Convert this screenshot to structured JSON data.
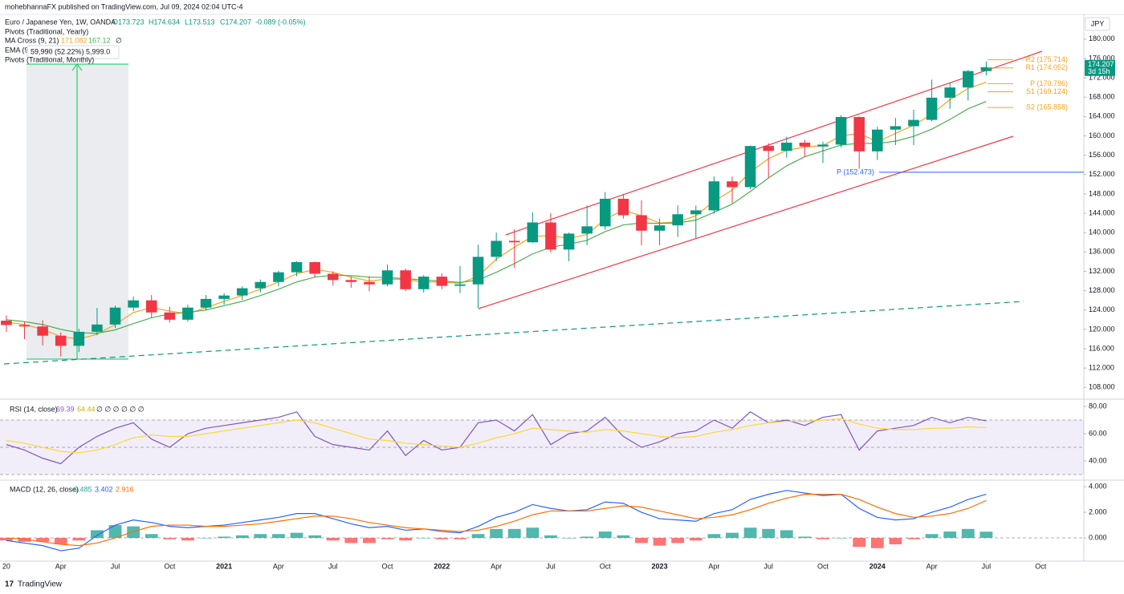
{
  "header": {
    "publisher": "mohebhannaFX published on TradingView.com, Jul 09, 2024 02:04 UTC-4"
  },
  "legend": {
    "symbol": "Euro / Japanese Yen, 1W, OANDA",
    "open": "O173.723",
    "high": "H174.634",
    "low": "L173.513",
    "close": "C174.207",
    "change": "-0.089 (-0.05%)",
    "pivots_yearly": "Pivots (Traditional, Yearly)",
    "ma_cross": "MA Cross (9, 21)",
    "ma_extra": "∅",
    "ema": "EMA (9, close)",
    "pivots_monthly": "Pivots (Traditional, Monthly)",
    "measure": "59,990 (52.22%) 5,999.0"
  },
  "currency": "JPY",
  "footer": "TradingView",
  "chart_data": [
    {
      "type": "candlestick",
      "up_color": "#089981",
      "down_color": "#f23645",
      "x": [
        0,
        1,
        2,
        3,
        4,
        5,
        6,
        7,
        8,
        9,
        10,
        11,
        12,
        13,
        14,
        15,
        16,
        17,
        18,
        19,
        20,
        21,
        22,
        23,
        24,
        25,
        26,
        27,
        28,
        29,
        30,
        31,
        32,
        33,
        34,
        35,
        36,
        37,
        38,
        39,
        40,
        41,
        42,
        43,
        44,
        45,
        46,
        47,
        48,
        49,
        50,
        51,
        52,
        53,
        54
      ],
      "ohlc": [
        [
          121.8,
          122.9,
          119.5,
          120.9
        ],
        [
          120.9,
          121.6,
          118.0,
          120.6
        ],
        [
          120.6,
          121.9,
          116.7,
          118.7
        ],
        [
          118.7,
          119.4,
          114.4,
          116.6
        ],
        [
          116.6,
          120.1,
          115.3,
          119.5
        ],
        [
          119.5,
          124.4,
          118.8,
          121.0
        ],
        [
          121.0,
          124.9,
          120.3,
          124.5
        ],
        [
          124.5,
          126.8,
          123.8,
          126.0
        ],
        [
          126.0,
          127.1,
          122.4,
          123.5
        ],
        [
          123.5,
          124.7,
          121.4,
          122.0
        ],
        [
          122.0,
          125.1,
          121.6,
          124.5
        ],
        [
          124.5,
          127.1,
          123.9,
          126.3
        ],
        [
          126.3,
          127.5,
          125.1,
          127.0
        ],
        [
          127.0,
          128.9,
          126.1,
          128.5
        ],
        [
          128.5,
          130.3,
          127.6,
          129.8
        ],
        [
          129.8,
          132.1,
          128.9,
          131.8
        ],
        [
          131.8,
          134.1,
          131.0,
          133.9
        ],
        [
          133.9,
          134.0,
          130.8,
          131.5
        ],
        [
          131.5,
          132.0,
          129.1,
          130.2
        ],
        [
          130.2,
          130.9,
          128.6,
          129.8
        ],
        [
          129.8,
          131.0,
          127.9,
          129.3
        ],
        [
          129.3,
          133.4,
          128.9,
          132.2
        ],
        [
          132.2,
          132.6,
          127.9,
          128.3
        ],
        [
          128.3,
          131.2,
          127.6,
          130.9
        ],
        [
          130.9,
          131.6,
          128.3,
          129.0
        ],
        [
          129.0,
          133.1,
          127.5,
          129.3
        ],
        [
          129.3,
          137.5,
          124.4,
          135.0
        ],
        [
          135.0,
          140.0,
          134.1,
          138.3
        ],
        [
          138.3,
          140.7,
          132.7,
          138.0
        ],
        [
          138.0,
          144.2,
          137.9,
          142.1
        ],
        [
          142.1,
          144.0,
          135.9,
          136.5
        ],
        [
          136.5,
          140.0,
          134.1,
          139.8
        ],
        [
          139.8,
          145.6,
          137.4,
          141.3
        ],
        [
          141.3,
          148.4,
          140.6,
          147.0
        ],
        [
          147.0,
          148.0,
          142.9,
          143.6
        ],
        [
          143.6,
          146.7,
          137.4,
          140.4
        ],
        [
          140.4,
          142.9,
          137.4,
          141.5
        ],
        [
          141.5,
          145.6,
          139.1,
          143.8
        ],
        [
          143.8,
          145.6,
          138.9,
          144.6
        ],
        [
          144.6,
          151.6,
          143.9,
          150.6
        ],
        [
          150.6,
          151.6,
          146.1,
          149.4
        ],
        [
          149.4,
          158.0,
          149.0,
          157.9
        ],
        [
          157.9,
          158.5,
          151.4,
          156.9
        ],
        [
          156.9,
          159.8,
          155.5,
          158.6
        ],
        [
          158.6,
          159.2,
          155.6,
          157.8
        ],
        [
          157.8,
          158.8,
          154.4,
          158.2
        ],
        [
          158.2,
          164.3,
          157.6,
          163.9
        ],
        [
          163.9,
          164.0,
          153.2,
          156.8
        ],
        [
          156.8,
          161.9,
          155.0,
          161.3
        ],
        [
          161.3,
          163.7,
          158.1,
          162.0
        ],
        [
          162.0,
          165.4,
          158.1,
          163.3
        ],
        [
          163.3,
          171.6,
          163.0,
          167.9
        ],
        [
          167.9,
          170.9,
          165.6,
          170.0
        ],
        [
          170.0,
          173.6,
          167.3,
          173.4
        ],
        [
          173.4,
          175.4,
          172.5,
          174.207
        ]
      ],
      "series": [
        {
          "color": "#f7a21b",
          "values": [
            121.5,
            121.0,
            120.0,
            118.5,
            118.0,
            119.0,
            121.0,
            123.5,
            124.5,
            123.8,
            123.2,
            124.5,
            125.8,
            127.0,
            128.3,
            129.8,
            131.5,
            132.4,
            131.8,
            130.8,
            130.0,
            130.4,
            130.3,
            129.8,
            129.8,
            129.5,
            131.0,
            134.5,
            137.0,
            139.2,
            139.4,
            138.8,
            139.6,
            142.8,
            144.6,
            143.5,
            142.0,
            142.2,
            143.5,
            146.5,
            148.8,
            152.5,
            155.3,
            157.0,
            157.7,
            158.0,
            160.0,
            160.5,
            158.8,
            160.5,
            162.2,
            164.5,
            167.5,
            169.8,
            171.082
          ]
        },
        {
          "color": "#4caf50",
          "values": [
            122.0,
            121.6,
            121.0,
            120.0,
            119.3,
            119.2,
            119.9,
            121.2,
            122.4,
            123.2,
            123.5,
            124.0,
            124.9,
            125.8,
            127.0,
            128.3,
            129.8,
            130.8,
            131.2,
            131.1,
            130.8,
            130.7,
            130.5,
            130.2,
            130.0,
            129.7,
            130.2,
            131.8,
            133.6,
            135.6,
            137.0,
            137.6,
            138.4,
            140.2,
            141.6,
            142.0,
            141.9,
            142.0,
            142.6,
            144.2,
            145.9,
            148.5,
            151.3,
            153.8,
            155.7,
            156.9,
            158.1,
            158.5,
            158.4,
            158.9,
            159.9,
            161.4,
            163.4,
            165.6,
            167.12
          ]
        }
      ],
      "xlim": [
        -0.35,
        59.38
      ],
      "xticks": [
        {
          "value": 0,
          "label": "20"
        },
        {
          "value": 3,
          "label": "Apr"
        },
        {
          "value": 6,
          "label": "Jul"
        },
        {
          "value": 9,
          "label": "Oct"
        },
        {
          "value": 12,
          "label": "2021"
        },
        {
          "value": 15,
          "label": "Apr"
        },
        {
          "value": 18,
          "label": "Jul"
        },
        {
          "value": 21,
          "label": "Oct"
        },
        {
          "value": 24,
          "label": "2022"
        },
        {
          "value": 27,
          "label": "Apr"
        },
        {
          "value": 30,
          "label": "Jul"
        },
        {
          "value": 33,
          "label": "Oct"
        },
        {
          "value": 36,
          "label": "2023"
        },
        {
          "value": 39,
          "label": "Apr"
        },
        {
          "value": 42,
          "label": "Jul"
        },
        {
          "value": 45,
          "label": "Oct"
        },
        {
          "value": 48,
          "label": "2024"
        },
        {
          "value": 51,
          "label": "Apr"
        },
        {
          "value": 54,
          "label": "Jul"
        },
        {
          "value": 57,
          "label": "Oct"
        }
      ],
      "ylim": [
        105.73,
        181.46
      ],
      "yticks": [
        {
          "value": 108,
          "label": "108.000"
        },
        {
          "value": 112,
          "label": "112.000"
        },
        {
          "value": 116,
          "label": "116.000"
        },
        {
          "value": 120,
          "label": "120.000"
        },
        {
          "value": 124,
          "label": "124.000"
        },
        {
          "value": 128,
          "label": "128.000"
        },
        {
          "value": 132,
          "label": "132.000"
        },
        {
          "value": 136,
          "label": "136.000"
        },
        {
          "value": 140,
          "label": "140.000"
        },
        {
          "value": 144,
          "label": "144.000"
        },
        {
          "value": 148,
          "label": "148.000"
        },
        {
          "value": 152,
          "label": "152.000"
        },
        {
          "value": 156,
          "label": "156.000"
        },
        {
          "value": 160,
          "label": "160.000"
        },
        {
          "value": 164,
          "label": "164.000"
        },
        {
          "value": 168,
          "label": "168.000"
        },
        {
          "value": 172,
          "label": "172.000"
        },
        {
          "value": 176,
          "label": "176.000"
        },
        {
          "value": 180,
          "label": "180.000"
        }
      ],
      "pivots": [
        {
          "label": "R2 (175.714)",
          "value": 175.714,
          "color": "#f7a21b"
        },
        {
          "label": "R1 (174.052)",
          "value": 174.052,
          "color": "#f7a21b"
        },
        {
          "label": "P (170.786)",
          "value": 170.786,
          "color": "#f7a21b"
        },
        {
          "label": "S1 (169.124)",
          "value": 169.124,
          "color": "#f7a21b"
        },
        {
          "label": "S2 (165.858)",
          "value": 165.858,
          "color": "#f7a21b"
        },
        {
          "label": "P (152.473)",
          "value": 152.473,
          "color": "#2962ff"
        }
      ],
      "countdown": "3d 15h"
    },
    {
      "type": "line",
      "title": "RSI (14, close)",
      "extra": "∅ ∅ ∅ ∅ ∅ ∅",
      "series": [
        {
          "color": "#7e57c2",
          "values": [
            52,
            48,
            42,
            38,
            50,
            58,
            64,
            68,
            56,
            50,
            60,
            64,
            66,
            68,
            70,
            72,
            76,
            58,
            52,
            50,
            48,
            62,
            44,
            55,
            48,
            50,
            68,
            70,
            62,
            74,
            52,
            60,
            62,
            72,
            58,
            50,
            54,
            60,
            62,
            70,
            64,
            76,
            68,
            70,
            66,
            72,
            74,
            48,
            62,
            64,
            66,
            72,
            68,
            72,
            69.39
          ]
        },
        {
          "color": "#fdd835",
          "values": [
            55,
            53,
            50,
            47,
            46,
            48,
            52,
            57,
            59,
            58,
            58,
            60,
            62,
            64,
            66,
            68,
            70,
            68,
            64,
            60,
            56,
            55,
            53,
            52,
            51,
            50,
            53,
            57,
            60,
            64,
            63,
            62,
            61,
            63,
            62,
            60,
            58,
            57,
            58,
            61,
            63,
            66,
            68,
            69,
            69,
            70,
            71,
            67,
            64,
            63,
            63,
            64,
            64,
            65,
            64.44
          ]
        }
      ],
      "levels": [
        70,
        50,
        30
      ],
      "ylim": [
        26.5,
        84.1
      ],
      "yticks": [
        {
          "value": 80,
          "label": "80.00"
        },
        {
          "value": 60,
          "label": "60.00"
        },
        {
          "value": 40,
          "label": "40.00"
        }
      ]
    },
    {
      "type": "macd",
      "title": "MACD (12, 26, close)",
      "up_color": "#26a69a",
      "down_color": "#ff5252",
      "histogram": [
        -0.2,
        -0.3,
        -0.3,
        -0.5,
        -0.2,
        0.6,
        1.0,
        0.9,
        0.3,
        -0.1,
        -0.2,
        0.0,
        0.1,
        0.2,
        0.3,
        0.3,
        0.4,
        0.2,
        -0.2,
        -0.4,
        -0.4,
        -0.1,
        -0.2,
        0.0,
        -0.1,
        -0.1,
        0.3,
        0.7,
        0.7,
        0.8,
        0.2,
        0.0,
        0.1,
        0.5,
        0.2,
        -0.4,
        -0.6,
        -0.4,
        -0.2,
        0.3,
        0.4,
        0.8,
        0.7,
        0.6,
        0.1,
        -0.1,
        0.0,
        -0.7,
        -0.8,
        -0.5,
        -0.1,
        0.3,
        0.5,
        0.7,
        0.485
      ],
      "series": [
        {
          "color": "#2962ff",
          "values": [
            -0.2,
            -0.4,
            -0.6,
            -1.0,
            -0.8,
            0.2,
            1.0,
            1.4,
            1.2,
            0.9,
            0.8,
            0.9,
            1.0,
            1.2,
            1.4,
            1.6,
            1.9,
            1.9,
            1.5,
            1.1,
            0.8,
            0.9,
            0.6,
            0.7,
            0.5,
            0.4,
            0.9,
            1.6,
            2.0,
            2.6,
            2.3,
            2.1,
            2.2,
            2.8,
            2.7,
            2.0,
            1.5,
            1.4,
            1.3,
            1.9,
            2.2,
            3.0,
            3.4,
            3.7,
            3.5,
            3.3,
            3.4,
            2.3,
            1.6,
            1.4,
            1.5,
            2.0,
            2.4,
            3.0,
            3.402
          ]
        },
        {
          "color": "#ff6d00",
          "values": [
            0,
            -0.1,
            -0.3,
            -0.5,
            -0.6,
            -0.4,
            0.0,
            0.5,
            0.9,
            1.0,
            1.0,
            0.9,
            0.9,
            1.0,
            1.1,
            1.3,
            1.5,
            1.7,
            1.7,
            1.5,
            1.2,
            1.0,
            0.8,
            0.7,
            0.6,
            0.5,
            0.6,
            0.9,
            1.3,
            1.8,
            2.1,
            2.1,
            2.1,
            2.3,
            2.5,
            2.4,
            2.1,
            1.8,
            1.5,
            1.6,
            1.8,
            2.2,
            2.7,
            3.1,
            3.4,
            3.4,
            3.4,
            3.0,
            2.4,
            1.9,
            1.6,
            1.7,
            1.9,
            2.3,
            2.916
          ]
        }
      ],
      "ylim": [
        -1.81,
        4.44
      ],
      "yticks": [
        {
          "value": 4,
          "label": "4.000"
        },
        {
          "value": 2,
          "label": "2.000"
        },
        {
          "value": 0,
          "label": "0.000"
        }
      ]
    }
  ]
}
